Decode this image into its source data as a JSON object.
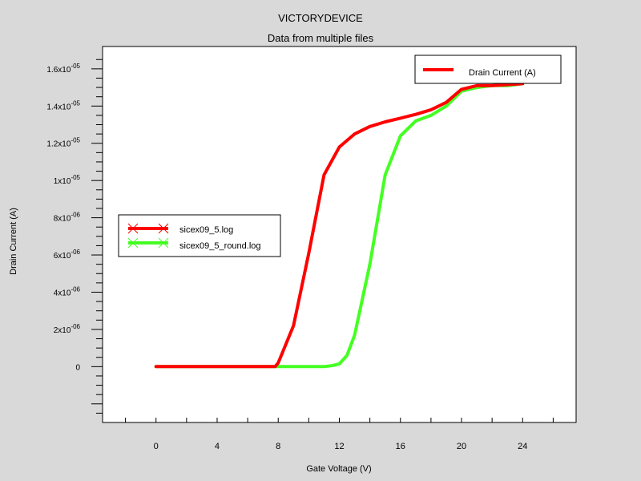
{
  "chart_data": {
    "type": "line",
    "title": "VICTORYDEVICE",
    "subtitle": "Data from multiple files",
    "xlabel": "Gate Voltage (V)",
    "ylabel": "Drain Current (A)",
    "xlim": [
      -3.5,
      27.5
    ],
    "ylim": [
      -3e-06,
      1.72e-05
    ],
    "x_ticks": [
      {
        "value": 0,
        "label": "0"
      },
      {
        "value": 4,
        "label": "4"
      },
      {
        "value": 8,
        "label": "8"
      },
      {
        "value": 12,
        "label": "12"
      },
      {
        "value": 16,
        "label": "16"
      },
      {
        "value": 20,
        "label": "20"
      },
      {
        "value": 24,
        "label": "24"
      }
    ],
    "y_ticks": [
      {
        "value": 0,
        "mant": "0",
        "exp": ""
      },
      {
        "value": 2e-06,
        "mant": "2x10",
        "exp": "-06"
      },
      {
        "value": 4e-06,
        "mant": "4x10",
        "exp": "-06"
      },
      {
        "value": 6e-06,
        "mant": "6x10",
        "exp": "-06"
      },
      {
        "value": 8e-06,
        "mant": "8x10",
        "exp": "-06"
      },
      {
        "value": 1e-05,
        "mant": "1x10",
        "exp": "-05"
      },
      {
        "value": 1.2e-05,
        "mant": "1.2x10",
        "exp": "-05"
      },
      {
        "value": 1.4e-05,
        "mant": "1.4x10",
        "exp": "-05"
      },
      {
        "value": 1.6e-05,
        "mant": "1.6x10",
        "exp": "-05"
      }
    ],
    "legend_quantity": "Drain Current (A)",
    "series": [
      {
        "name": "sicex09_5.log",
        "color": "#ff0000",
        "x": [
          0,
          2,
          4,
          6,
          7,
          7.8,
          8,
          9,
          10,
          11,
          12,
          13,
          14,
          15,
          16,
          17,
          18,
          19,
          20,
          21,
          22,
          23,
          24
        ],
        "y": [
          0,
          0,
          0,
          0,
          0,
          0,
          2e-07,
          2.2e-06,
          6.1e-06,
          1.03e-05,
          1.18e-05,
          1.25e-05,
          1.29e-05,
          1.315e-05,
          1.335e-05,
          1.355e-05,
          1.38e-05,
          1.42e-05,
          1.49e-05,
          1.51e-05,
          1.51e-05,
          1.515e-05,
          1.52e-05
        ]
      },
      {
        "name": "sicex09_5_round.log",
        "color": "#44ff22",
        "x": [
          0,
          2,
          4,
          6,
          8,
          10,
          11,
          11.5,
          12,
          12.5,
          13,
          14,
          15,
          16,
          17,
          18,
          19,
          20,
          21,
          22,
          23,
          24
        ],
        "y": [
          0,
          0,
          0,
          0,
          0,
          0,
          0,
          5e-08,
          1.5e-07,
          6e-07,
          1.7e-06,
          5.5e-06,
          1.03e-05,
          1.24e-05,
          1.32e-05,
          1.35e-05,
          1.4e-05,
          1.48e-05,
          1.5e-05,
          1.51e-05,
          1.51e-05,
          1.52e-05
        ]
      }
    ]
  }
}
